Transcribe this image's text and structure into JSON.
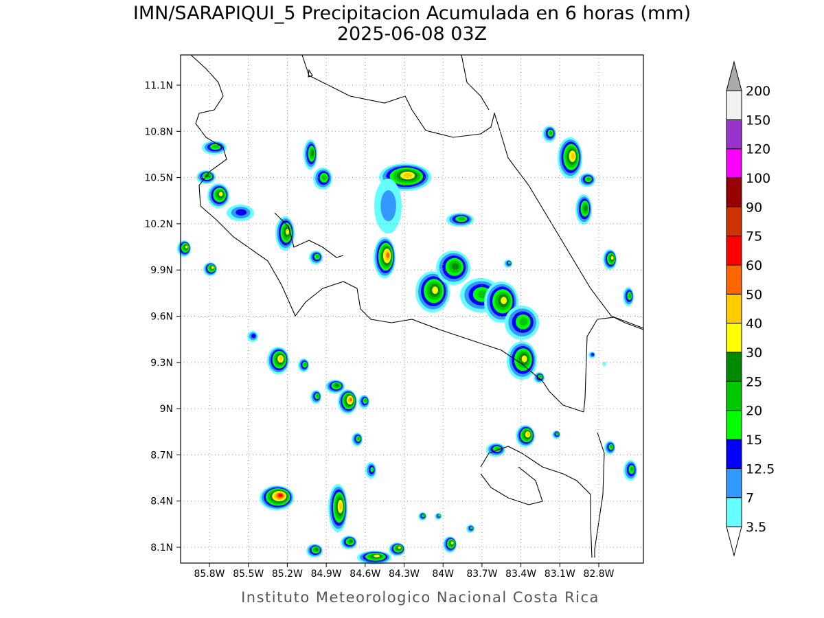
{
  "header": {
    "title": "IMN/SARAPIQUI_5 Precipitacion Acumulada en 6 horas (mm)",
    "subtitle": "2025-06-08 03Z"
  },
  "map": {
    "lon_ticks": [
      "85.8W",
      "85.5W",
      "85.2W",
      "84.9W",
      "84.6W",
      "84.3W",
      "84W",
      "83.7W",
      "83.4W",
      "83.1W",
      "82.8W"
    ],
    "lat_ticks": [
      "11.1N",
      "10.8N",
      "10.5N",
      "10.2N",
      "9.9N",
      "9.6N",
      "9.3N",
      "9N",
      "8.7N",
      "8.4N",
      "8.1N"
    ]
  },
  "colorbar": {
    "levels": [
      3.5,
      7,
      12.5,
      15,
      20,
      25,
      30,
      40,
      50,
      60,
      75,
      90,
      100,
      120,
      150,
      200
    ],
    "colors": [
      "#66ffff",
      "#3399ff",
      "#0000ff",
      "#00ff00",
      "#00c800",
      "#008c00",
      "#ffff00",
      "#ffcc00",
      "#ff6600",
      "#ff0000",
      "#cc3300",
      "#990000",
      "#ff00ff",
      "#9933cc",
      "#f2f2f2"
    ],
    "under_color": "#ffffff",
    "over_color": "#aaaaaa"
  },
  "footer": "Instituto Meteorologico Nacional Costa Rica"
}
